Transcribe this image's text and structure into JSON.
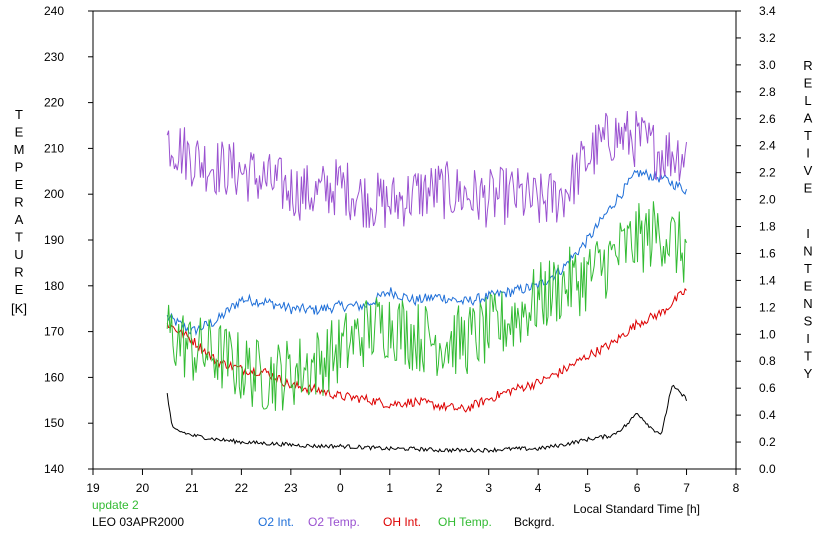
{
  "chart_data": {
    "type": "line",
    "xlabel": "Local Standard Time [h]",
    "ylabel_left": "TEMPERATURE",
    "ylabel_left_unit": "[K]",
    "ylabel_right": "RELATIVE INTENSITY",
    "xlim": [
      19,
      8
    ],
    "x_ticks": [
      "19",
      "20",
      "21",
      "22",
      "23",
      "0",
      "1",
      "2",
      "3",
      "4",
      "5",
      "6",
      "7",
      "8"
    ],
    "ylim_left": [
      140,
      240
    ],
    "y_ticks_left": [
      "140",
      "150",
      "160",
      "170",
      "180",
      "190",
      "200",
      "210",
      "220",
      "230",
      "240"
    ],
    "ylim_right": [
      0.0,
      3.4
    ],
    "y_ticks_right": [
      "0.0",
      "0.2",
      "0.4",
      "0.6",
      "0.8",
      "1.0",
      "1.2",
      "1.4",
      "1.6",
      "1.8",
      "2.0",
      "2.2",
      "2.4",
      "2.6",
      "2.8",
      "3.0",
      "3.2",
      "3.4"
    ],
    "grid": false,
    "status": "update 2",
    "station": "LEO 03APR2000",
    "series": [
      {
        "name": "O2 Int.",
        "axis": "right",
        "color": "#1f6fd8",
        "x": [
          20.5,
          21.0,
          21.5,
          22.0,
          22.5,
          23.0,
          23.5,
          24.0,
          24.5,
          25.0,
          25.5,
          26.0,
          26.5,
          27.0,
          27.5,
          28.0,
          28.5,
          29.0,
          29.5,
          30.0,
          30.5,
          31.0
        ],
        "values": [
          1.13,
          1.02,
          1.1,
          1.26,
          1.24,
          1.19,
          1.18,
          1.21,
          1.21,
          1.32,
          1.25,
          1.28,
          1.24,
          1.28,
          1.32,
          1.36,
          1.49,
          1.7,
          1.96,
          2.2,
          2.16,
          2.07
        ]
      },
      {
        "name": "O2 Temp.",
        "axis": "left",
        "color": "#9a52d0",
        "x": [
          20.5,
          21.0,
          21.5,
          22.0,
          22.5,
          23.0,
          23.5,
          24.0,
          24.5,
          25.0,
          25.5,
          26.0,
          26.5,
          27.0,
          27.5,
          28.0,
          28.5,
          29.0,
          29.5,
          30.0,
          30.5,
          31.0
        ],
        "values": [
          212,
          208,
          206,
          205,
          203,
          201,
          200,
          202,
          199,
          198,
          200,
          201,
          200,
          199,
          200,
          198,
          200,
          208,
          213,
          212,
          209,
          209
        ]
      },
      {
        "name": "OH Int.",
        "axis": "right",
        "color": "#dd0000",
        "x": [
          20.5,
          21.0,
          21.5,
          22.0,
          22.5,
          23.0,
          23.5,
          24.0,
          24.5,
          25.0,
          25.5,
          26.0,
          26.5,
          27.0,
          27.5,
          28.0,
          28.5,
          29.0,
          29.5,
          30.0,
          30.5,
          31.0
        ],
        "values": [
          1.08,
          0.96,
          0.8,
          0.74,
          0.72,
          0.62,
          0.59,
          0.54,
          0.52,
          0.48,
          0.5,
          0.47,
          0.44,
          0.52,
          0.59,
          0.64,
          0.73,
          0.84,
          0.93,
          1.08,
          1.16,
          1.33
        ]
      },
      {
        "name": "OH Temp.",
        "axis": "left",
        "color": "#33bb33",
        "x": [
          20.5,
          21.0,
          21.5,
          22.0,
          22.5,
          23.0,
          23.5,
          24.0,
          24.5,
          25.0,
          25.5,
          26.0,
          26.5,
          27.0,
          27.5,
          28.0,
          28.5,
          29.0,
          29.5,
          30.0,
          30.5,
          31.0
        ],
        "values": [
          170,
          166,
          165,
          162,
          160,
          161,
          163,
          166,
          170,
          172,
          169,
          168,
          168,
          170,
          173,
          177,
          180,
          182,
          186,
          190,
          192,
          187
        ]
      },
      {
        "name": "Bckgrd.",
        "axis": "right",
        "color": "#000000",
        "x": [
          20.5,
          20.6,
          21.0,
          21.5,
          22.0,
          22.5,
          23.0,
          23.5,
          24.0,
          24.5,
          25.0,
          25.5,
          26.0,
          26.5,
          27.0,
          27.5,
          28.0,
          28.5,
          29.0,
          29.5,
          29.8,
          30.0,
          30.3,
          30.5,
          30.7,
          31.0
        ],
        "values": [
          0.56,
          0.3,
          0.25,
          0.22,
          0.2,
          0.19,
          0.18,
          0.17,
          0.17,
          0.16,
          0.15,
          0.15,
          0.14,
          0.14,
          0.14,
          0.15,
          0.15,
          0.18,
          0.22,
          0.25,
          0.33,
          0.42,
          0.3,
          0.26,
          0.62,
          0.52
        ]
      }
    ]
  }
}
